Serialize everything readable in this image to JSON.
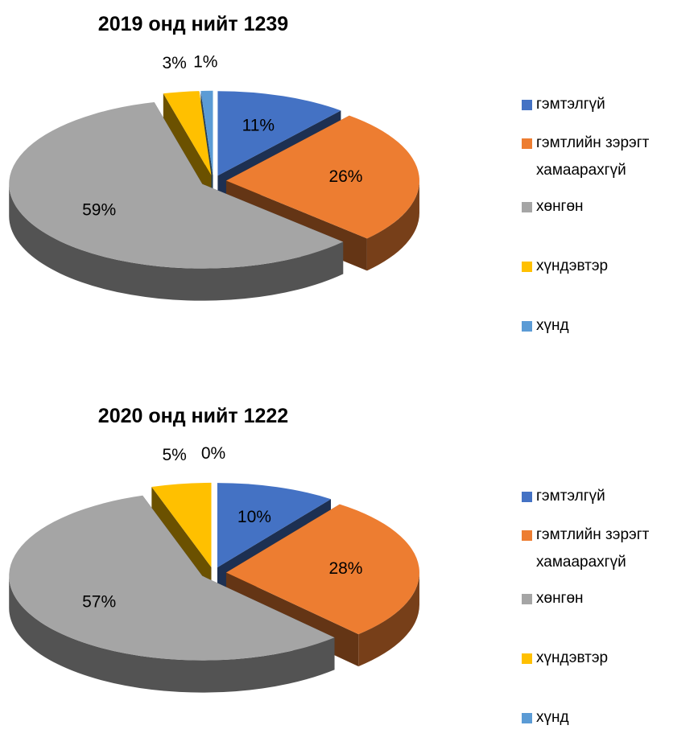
{
  "chart_data": [
    {
      "type": "pie",
      "title": "2019 онд нийт 1239",
      "categories": [
        "гэмтэлгүй",
        "гэмтлийн зэрэгт хамаарахгүй",
        "хөнгөн",
        "хүндэвтэр",
        "хүнд"
      ],
      "values": [
        11,
        26,
        59,
        3,
        1
      ],
      "value_labels": [
        "11%",
        "26%",
        "59%",
        "3%",
        "1%"
      ],
      "colors": [
        "#4472c4",
        "#ed7d31",
        "#a5a5a5",
        "#ffc000",
        "#5b9bd5"
      ],
      "legend": "right"
    },
    {
      "type": "pie",
      "title": "2020 онд нийт 1222",
      "categories": [
        "гэмтэлгүй",
        "гэмтлийн зэрэгт хамаарахгүй",
        "хөнгөн",
        "хүндэвтэр",
        "хүнд"
      ],
      "values": [
        10,
        28,
        57,
        5,
        0
      ],
      "value_labels": [
        "10%",
        "28%",
        "57%",
        "5%",
        "0%"
      ],
      "colors": [
        "#4472c4",
        "#ed7d31",
        "#a5a5a5",
        "#ffc000",
        "#5b9bd5"
      ],
      "legend": "right"
    }
  ]
}
